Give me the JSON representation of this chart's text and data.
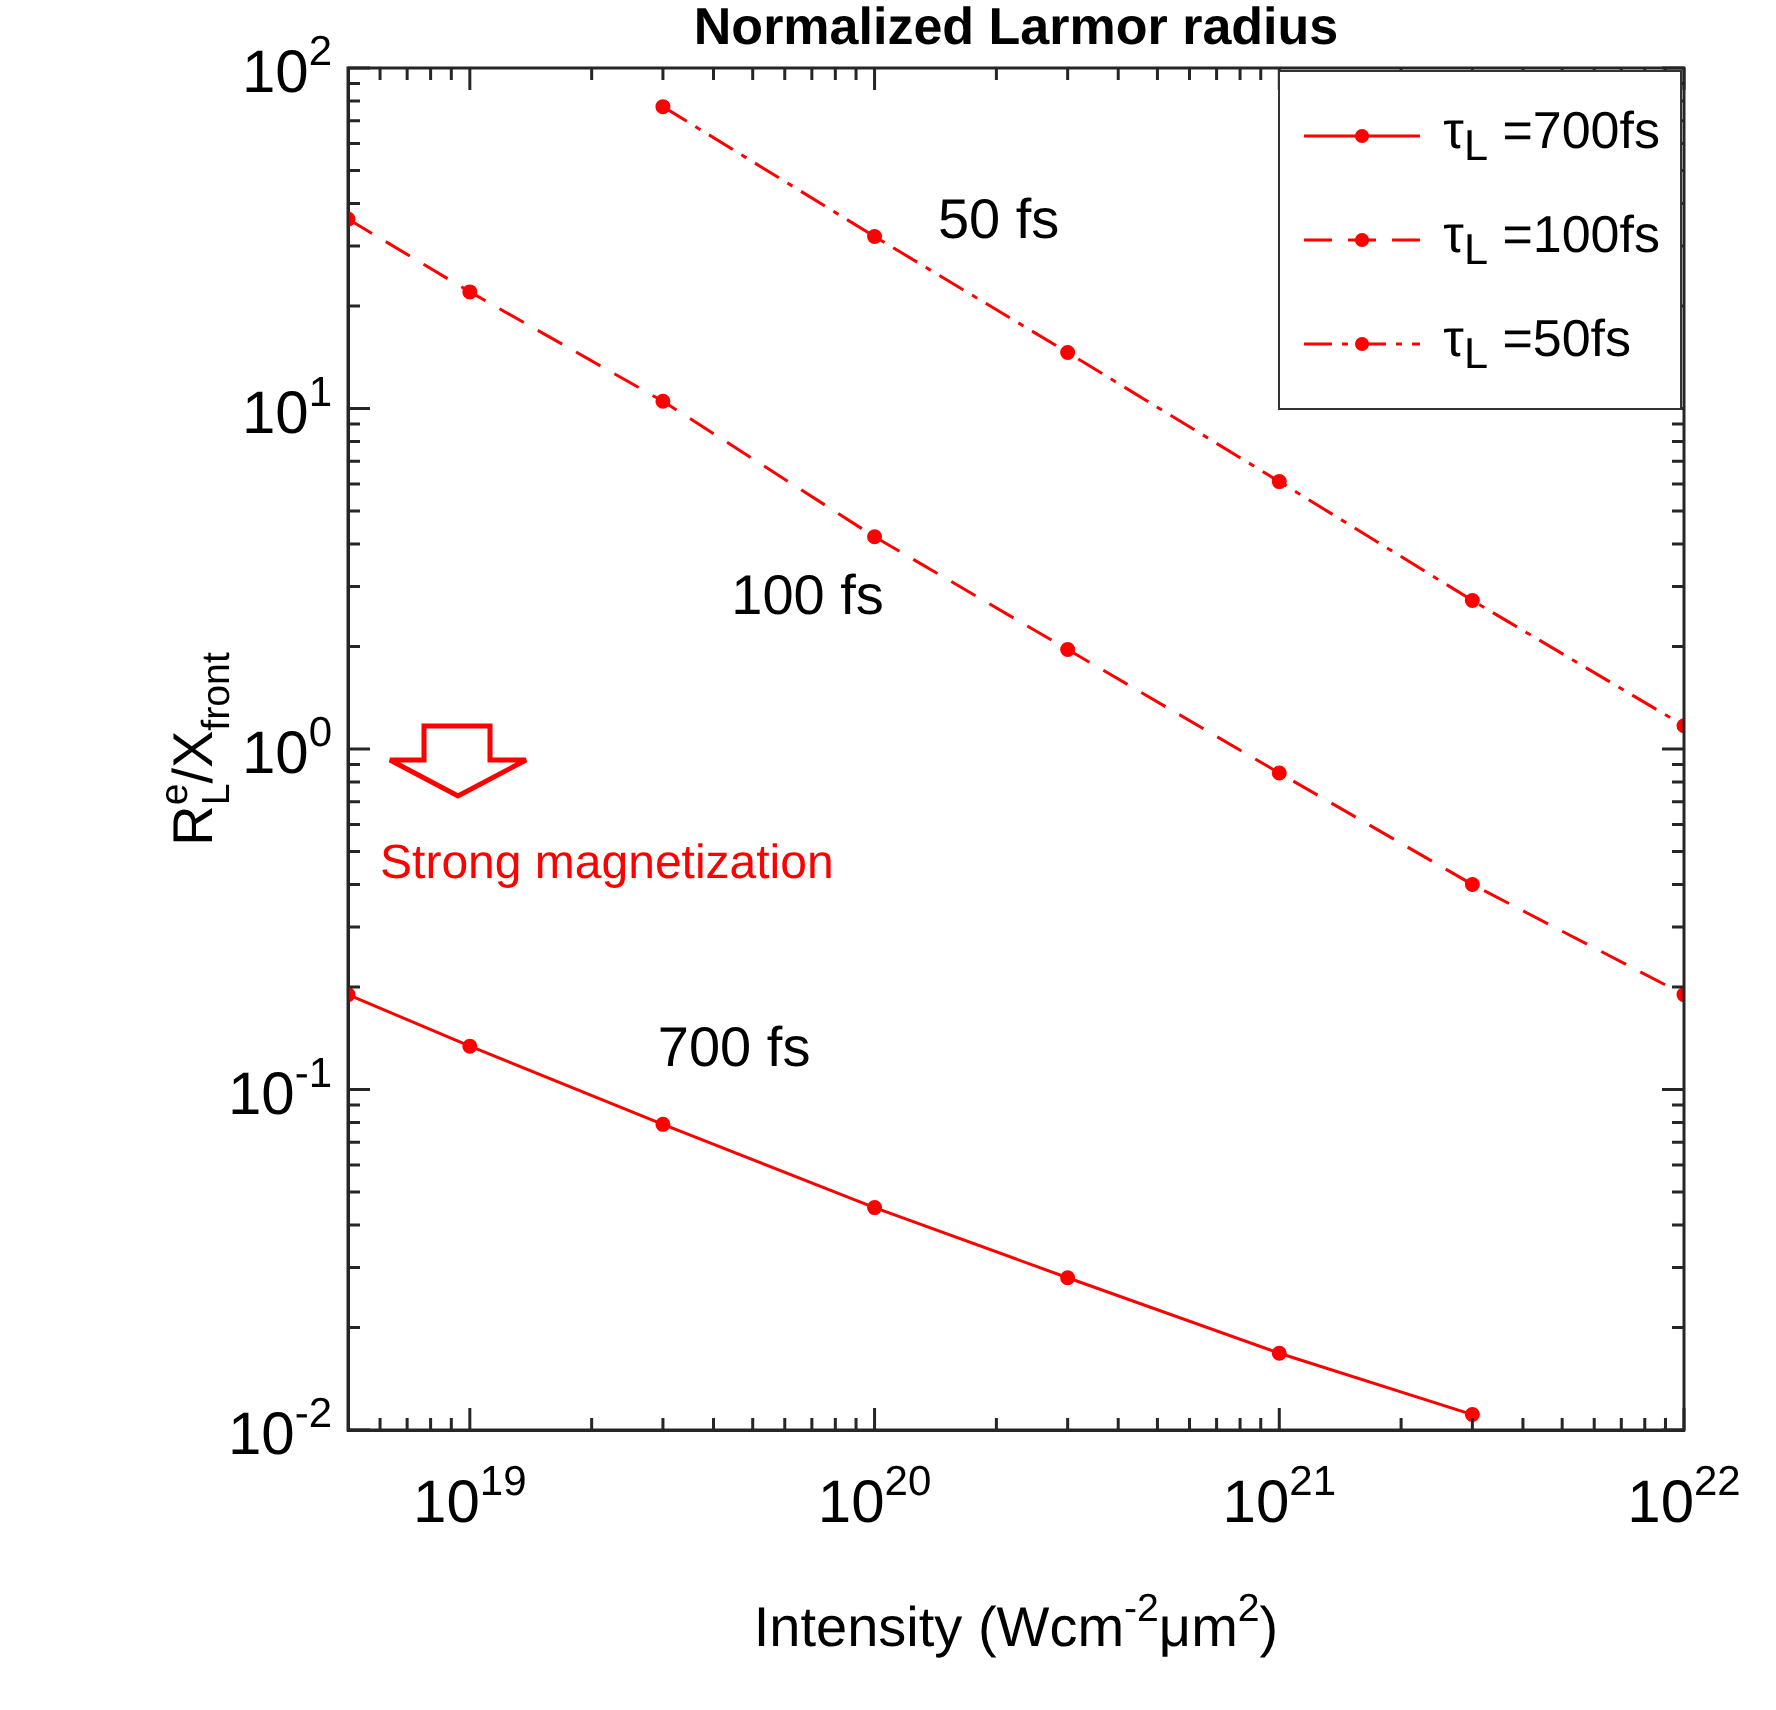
{
  "chart_data": {
    "type": "line",
    "title": "Normalized Larmor radius",
    "xlabel": "Intensity (Wcm$^{-2}$μm$^{2}$)",
    "ylabel": "R$_{L}$$^{e}$/X$_{front}$",
    "x": [
      5e+18,
      1e+19,
      3e+19,
      1e+20,
      3e+20,
      1e+21,
      3e+21,
      1e+22
    ],
    "series": [
      {
        "name": "τ$_{L}$ =700fs",
        "color": "#ff0000",
        "line_style": "solid",
        "values": [
          0.19,
          0.134,
          0.079,
          0.045,
          0.028,
          0.0168,
          0.0111,
          null
        ]
      },
      {
        "name": "τ$_{L}$ =100fs",
        "color": "#ff0000",
        "line_style": "dashed",
        "values": [
          36,
          22,
          10.5,
          4.2,
          1.96,
          0.85,
          0.4,
          0.19
        ]
      },
      {
        "name": "τ$_{L}$ =50fs",
        "color": "#ff0000",
        "line_style": "dashdot",
        "values": [
          null,
          null,
          77,
          32,
          14.6,
          6.1,
          2.73,
          1.17
        ]
      }
    ],
    "log": "xy",
    "xlim": [
      5e+18,
      1e+22
    ],
    "ylim": [
      0.01,
      100
    ],
    "xticks": [
      {
        "value": 6e+18,
        "label": null
      },
      {
        "value": 7e+18,
        "label": null
      },
      {
        "value": 8e+18,
        "label": null
      },
      {
        "value": 9e+18,
        "label": null
      },
      {
        "value": 1e+19,
        "label": "10$^{19}$"
      },
      {
        "value": 2e+19,
        "label": null
      },
      {
        "value": 3e+19,
        "label": null
      },
      {
        "value": 4e+19,
        "label": null
      },
      {
        "value": 5e+19,
        "label": null
      },
      {
        "value": 6e+19,
        "label": null
      },
      {
        "value": 7e+19,
        "label": null
      },
      {
        "value": 8e+19,
        "label": null
      },
      {
        "value": 9e+19,
        "label": null
      },
      {
        "value": 1e+20,
        "label": "10$^{20}$"
      },
      {
        "value": 2e+20,
        "label": null
      },
      {
        "value": 3e+20,
        "label": null
      },
      {
        "value": 4e+20,
        "label": null
      },
      {
        "value": 5e+20,
        "label": null
      },
      {
        "value": 6e+20,
        "label": null
      },
      {
        "value": 7e+20,
        "label": null
      },
      {
        "value": 8e+20,
        "label": null
      },
      {
        "value": 9e+20,
        "label": null
      },
      {
        "value": 1e+21,
        "label": "10$^{21}$"
      },
      {
        "value": 2e+21,
        "label": null
      },
      {
        "value": 3e+21,
        "label": null
      },
      {
        "value": 4e+21,
        "label": null
      },
      {
        "value": 5e+21,
        "label": null
      },
      {
        "value": 6e+21,
        "label": null
      },
      {
        "value": 7e+21,
        "label": null
      },
      {
        "value": 8e+21,
        "label": null
      },
      {
        "value": 9e+21,
        "label": null
      },
      {
        "value": 1e+22,
        "label": "10$^{22}$"
      }
    ],
    "yticks": [
      {
        "value": 0.01,
        "label": "10$^{-2}$"
      },
      {
        "value": 0.02,
        "label": null
      },
      {
        "value": 0.03,
        "label": null
      },
      {
        "value": 0.04,
        "label": null
      },
      {
        "value": 0.05,
        "label": null
      },
      {
        "value": 0.06,
        "label": null
      },
      {
        "value": 0.07,
        "label": null
      },
      {
        "value": 0.08,
        "label": null
      },
      {
        "value": 0.09,
        "label": null
      },
      {
        "value": 0.1,
        "label": "10$^{-1}$"
      },
      {
        "value": 0.2,
        "label": null
      },
      {
        "value": 0.3,
        "label": null
      },
      {
        "value": 0.4,
        "label": null
      },
      {
        "value": 0.5,
        "label": null
      },
      {
        "value": 0.6,
        "label": null
      },
      {
        "value": 0.7,
        "label": null
      },
      {
        "value": 0.8,
        "label": null
      },
      {
        "value": 0.9,
        "label": null
      },
      {
        "value": 1,
        "label": "10$^{0}$"
      },
      {
        "value": 2,
        "label": null
      },
      {
        "value": 3,
        "label": null
      },
      {
        "value": 4,
        "label": null
      },
      {
        "value": 5,
        "label": null
      },
      {
        "value": 6,
        "label": null
      },
      {
        "value": 7,
        "label": null
      },
      {
        "value": 8,
        "label": null
      },
      {
        "value": 9,
        "label": null
      },
      {
        "value": 10,
        "label": "10$^{1}$"
      },
      {
        "value": 20,
        "label": null
      },
      {
        "value": 30,
        "label": null
      },
      {
        "value": 40,
        "label": null
      },
      {
        "value": 50,
        "label": null
      },
      {
        "value": 60,
        "label": null
      },
      {
        "value": 70,
        "label": null
      },
      {
        "value": 80,
        "label": null
      },
      {
        "value": 90,
        "label": null
      },
      {
        "value": 100,
        "label": "10$^{2}$"
      }
    ],
    "marker": "circle",
    "legend": "top right",
    "grid": false,
    "annotations": [
      "50 fs",
      "100 fs",
      "700 fs",
      "Strong magnetization"
    ]
  }
}
